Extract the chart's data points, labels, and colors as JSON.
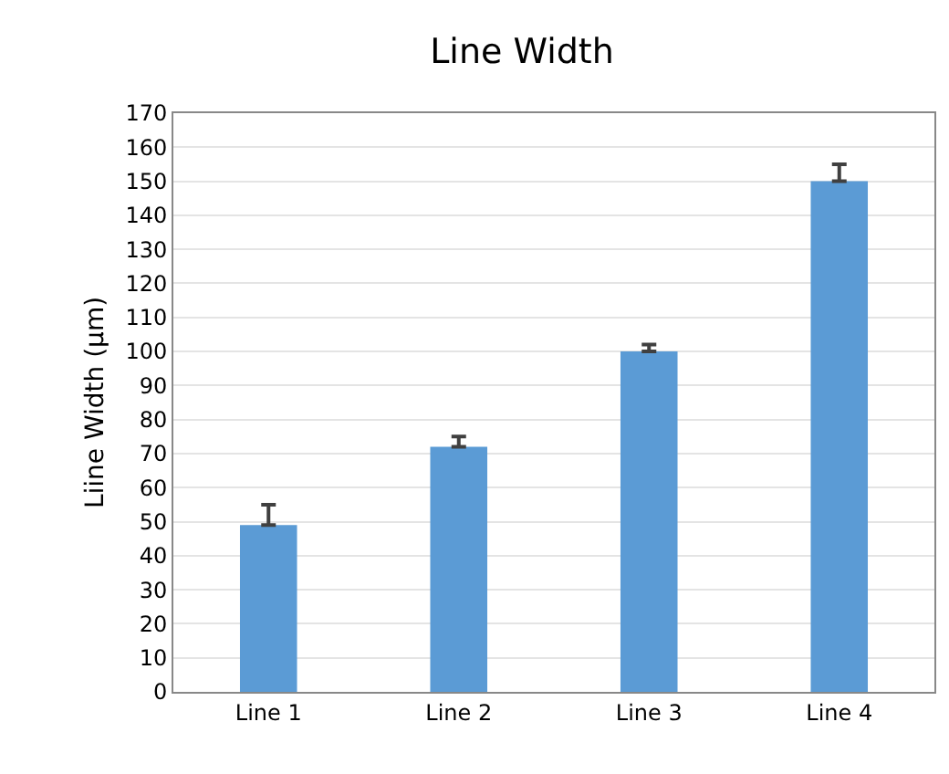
{
  "chart_data": {
    "type": "bar",
    "title": "Line Width",
    "ylabel": "Liine Width (μm)",
    "categories": [
      "Line 1",
      "Line 2",
      "Line 3",
      "Line 4"
    ],
    "values": [
      49,
      72,
      100,
      150
    ],
    "errors": [
      [
        49,
        55
      ],
      [
        72,
        75
      ],
      [
        100,
        102
      ],
      [
        150,
        155
      ]
    ],
    "color": "#5b9bd5",
    "ylim": [
      0,
      170
    ],
    "yticks": [
      0,
      10,
      20,
      30,
      40,
      50,
      60,
      70,
      80,
      90,
      100,
      110,
      120,
      130,
      140,
      150,
      160,
      170
    ],
    "grid": "y"
  }
}
